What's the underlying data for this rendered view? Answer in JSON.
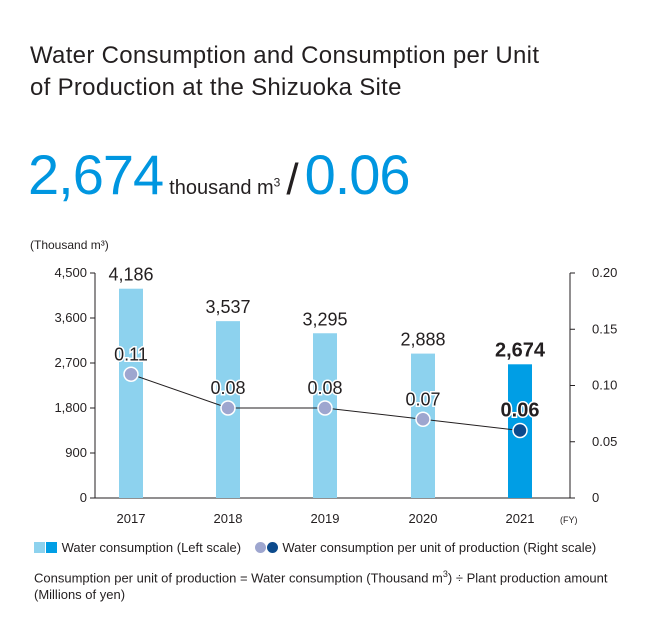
{
  "title": {
    "line1": "Water Consumption and Consumption per Unit",
    "line2": "of Production at the Shizuoka Site"
  },
  "headline": {
    "value1": "2,674",
    "unit": "thousand m",
    "unit_sup": "3",
    "slash": "/",
    "value2": "0.06"
  },
  "colors": {
    "accent": "#0096e0",
    "bar_light": "#8dd2ee",
    "bar_dark": "#009ee5",
    "dot_light": "#9ea6cf",
    "dot_dark": "#0c4a8c"
  },
  "chart_data": {
    "type": "bar",
    "categories": [
      "2017",
      "2018",
      "2019",
      "2020",
      "2021"
    ],
    "x_unit_label": "(FY)",
    "left_axis": {
      "label": "(Thousand m³)",
      "range": [
        0,
        4500
      ],
      "ticks": [
        "0",
        "900",
        "1,800",
        "2,700",
        "3,600",
        "4,500"
      ]
    },
    "right_axis": {
      "range": [
        0,
        0.2
      ],
      "ticks": [
        "0",
        "0.05",
        "0.10",
        "0.15",
        "0.20"
      ]
    },
    "series": [
      {
        "name": "Water consumption (Left scale)",
        "type": "bar",
        "axis": "left",
        "values": [
          4186,
          3537,
          3295,
          2888,
          2674
        ],
        "labels": [
          "4,186",
          "3,537",
          "3,295",
          "2,888",
          "2,674"
        ],
        "highlight_last": true
      },
      {
        "name": "Water consumption per unit of production (Right scale)",
        "type": "line",
        "axis": "right",
        "values": [
          0.11,
          0.08,
          0.08,
          0.07,
          0.06
        ],
        "labels": [
          "0.11",
          "0.08",
          "0.08",
          "0.07",
          "0.06"
        ],
        "highlight_last": true
      }
    ],
    "grid": false
  },
  "legend": {
    "bar_label": "Water consumption (Left scale)",
    "line_label": "Water consumption per unit of production (Right scale)"
  },
  "note": {
    "part1": "Consumption per unit of production = Water consumption (Thousand m",
    "sup": "3",
    "part2": ") ÷ Plant production amount (Millions of yen)"
  }
}
